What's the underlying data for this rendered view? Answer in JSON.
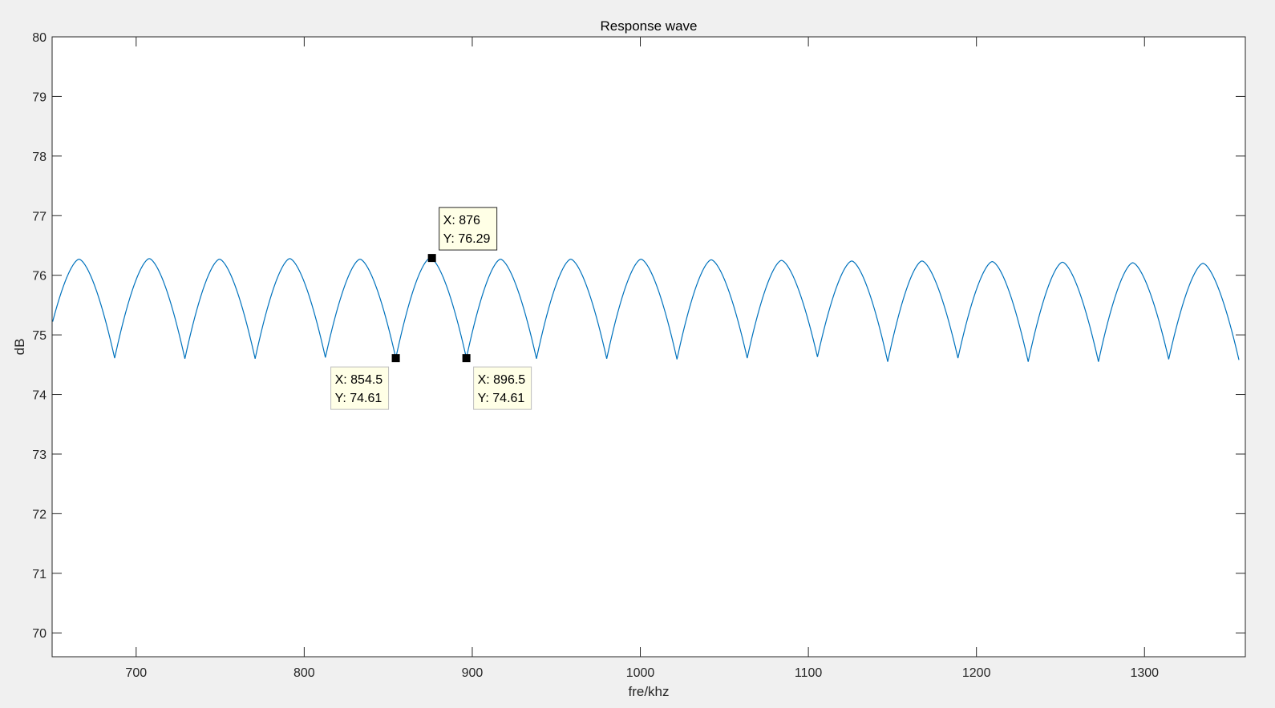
{
  "chart_data": {
    "type": "line",
    "title": "Response wave",
    "xlabel": "fre/khz",
    "ylabel": "dB",
    "xlim": [
      650,
      1360
    ],
    "ylim": [
      69.6,
      80
    ],
    "xticks": [
      700,
      800,
      900,
      1000,
      1100,
      1200,
      1300
    ],
    "yticks": [
      70,
      71,
      72,
      73,
      74,
      75,
      76,
      77,
      78,
      79,
      80
    ],
    "grid": false,
    "box": true,
    "line_color": "#0072bd",
    "series": [
      {
        "x_start": 650,
        "x_end": 1360,
        "period_khz": 41.8,
        "first_peak_x": 666,
        "peak_values": [
          76.27,
          76.28,
          76.27,
          76.28,
          76.27,
          76.29,
          76.27,
          76.27,
          76.27,
          76.26,
          76.25,
          76.24,
          76.24,
          76.23,
          76.22,
          76.21,
          76.2
        ],
        "trough_x": [
          687.2,
          729.0,
          770.8,
          812.6,
          854.5,
          896.5,
          938.2,
          980.0,
          1021.8,
          1063.6,
          1105.4,
          1147.2,
          1189.0,
          1230.8,
          1272.6,
          1314.4,
          1356.2
        ],
        "trough_values": [
          74.61,
          74.6,
          74.6,
          74.62,
          74.61,
          74.61,
          74.6,
          74.6,
          74.59,
          74.61,
          74.63,
          74.55,
          74.61,
          74.55,
          74.55,
          74.59,
          74.58
        ]
      }
    ],
    "datatips": [
      {
        "x": 876,
        "y": 76.29,
        "line1": "X: 876",
        "line2": "Y: 76.29",
        "placement": "above-right"
      },
      {
        "x": 854.5,
        "y": 74.61,
        "line1": "X: 854.5",
        "line2": "Y: 74.61",
        "placement": "below-left"
      },
      {
        "x": 896.5,
        "y": 74.61,
        "line1": "X: 896.5",
        "line2": "Y: 74.61",
        "placement": "below-right"
      }
    ]
  }
}
